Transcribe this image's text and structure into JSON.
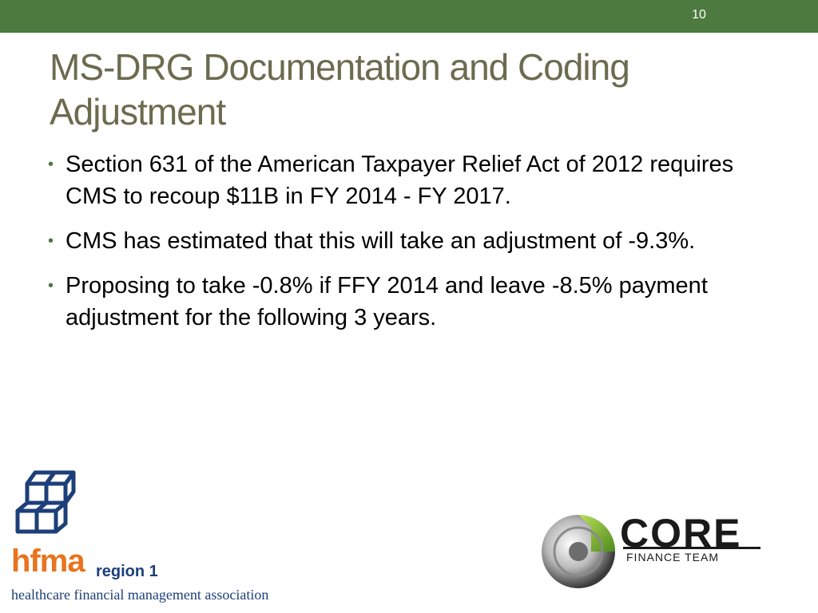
{
  "header": {
    "slide_number": "10"
  },
  "title": "MS-DRG Documentation and Coding Adjustment",
  "bullets": [
    {
      "text": "Section 631 of the American Taxpayer Relief Act of 2012 requires CMS to recoup $11B in FY 2014 - FY 2017."
    },
    {
      "text": "CMS has estimated that this will take an adjustment of -9.3%."
    },
    {
      "text": "Proposing to take -0.8% if FFY 2014 and leave -8.5% payment adjustment for the following 3 years."
    }
  ],
  "logos": {
    "hfma": {
      "name": "hfma",
      "region": "region 1",
      "tagline": "healthcare financial management association"
    },
    "core": {
      "name": "CORE",
      "subtitle": "FINANCE TEAM"
    }
  },
  "colors": {
    "accent": "#4d7a3f",
    "title": "#6b6b4f",
    "hfma_orange": "#e8741e",
    "hfma_blue": "#1d3f79",
    "core_green": "#7cb82f"
  },
  "icons": {
    "bullet": "bullet-dot-icon",
    "hfma_mark": "hfma-cubes-icon",
    "core_mark": "core-sphere-icon"
  }
}
